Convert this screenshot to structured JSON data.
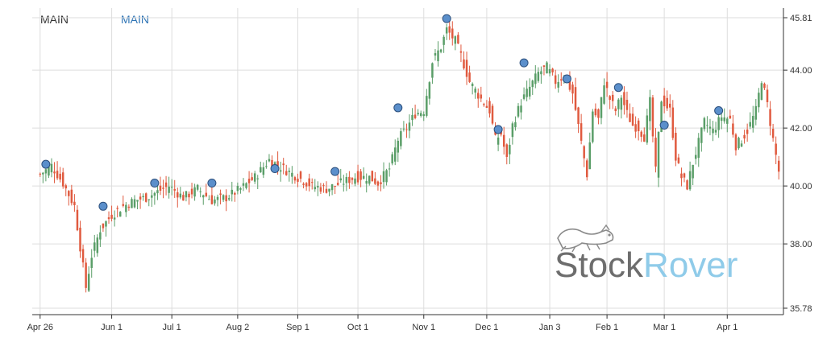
{
  "legend": {
    "items": [
      "MAIN",
      "MAIN"
    ]
  },
  "watermark": {
    "part1": "Stock",
    "part2": "Rover"
  },
  "colors": {
    "up": "#5a9e68",
    "down": "#e05a3f",
    "marker": "#5b8fcb",
    "grid": "#dddddd",
    "axis": "#333333",
    "watermark_part1": "#6d6d6d",
    "watermark_part2": "#8fcbe9"
  },
  "chart_data": {
    "type": "candlestick",
    "x_axis": {
      "labels": [
        "Apr 26",
        "Jun 1",
        "Jul 1",
        "Aug 2",
        "Sep 1",
        "Oct 1",
        "Nov 1",
        "Dec 1",
        "Jan 3",
        "Feb 1",
        "Mar 1",
        "Apr 1"
      ],
      "label_day_index": [
        0,
        25,
        46,
        69,
        90,
        111,
        134,
        156,
        178,
        198,
        218,
        240
      ]
    },
    "y_axis": {
      "ticks": [
        "45.81",
        "44.00",
        "42.00",
        "40.00",
        "38.00",
        "35.78"
      ],
      "range": [
        35.78,
        45.81
      ],
      "position": "right"
    },
    "grid": true,
    "series_anchors": [
      [
        0,
        40.4
      ],
      [
        4,
        40.7
      ],
      [
        8,
        40.1
      ],
      [
        12,
        39.3
      ],
      [
        14,
        37.9
      ],
      [
        16,
        36.5
      ],
      [
        18,
        37.6
      ],
      [
        21,
        38.5
      ],
      [
        25,
        39.0
      ],
      [
        29,
        39.3
      ],
      [
        33,
        39.5
      ],
      [
        37,
        39.6
      ],
      [
        41,
        39.8
      ],
      [
        45,
        40.0
      ],
      [
        50,
        39.6
      ],
      [
        55,
        39.9
      ],
      [
        60,
        39.5
      ],
      [
        65,
        39.6
      ],
      [
        70,
        39.9
      ],
      [
        75,
        40.3
      ],
      [
        80,
        40.9
      ],
      [
        85,
        40.6
      ],
      [
        90,
        40.3
      ],
      [
        95,
        40.0
      ],
      [
        100,
        39.9
      ],
      [
        105,
        40.1
      ],
      [
        110,
        40.3
      ],
      [
        115,
        40.3
      ],
      [
        118,
        40.1
      ],
      [
        122,
        40.6
      ],
      [
        125,
        41.6
      ],
      [
        128,
        42.0
      ],
      [
        131,
        42.5
      ],
      [
        134,
        42.6
      ],
      [
        137,
        44.3
      ],
      [
        140,
        44.8
      ],
      [
        142,
        45.4
      ],
      [
        145,
        45.0
      ],
      [
        147,
        44.5
      ],
      [
        150,
        43.6
      ],
      [
        154,
        43.0
      ],
      [
        157,
        42.6
      ],
      [
        159,
        41.6
      ],
      [
        161,
        41.8
      ],
      [
        163,
        40.9
      ],
      [
        165,
        42.1
      ],
      [
        168,
        42.9
      ],
      [
        171,
        43.4
      ],
      [
        174,
        43.9
      ],
      [
        177,
        44.1
      ],
      [
        180,
        43.6
      ],
      [
        183,
        43.8
      ],
      [
        186,
        43.2
      ],
      [
        189,
        41.5
      ],
      [
        191,
        40.4
      ],
      [
        193,
        42.6
      ],
      [
        195,
        42.3
      ],
      [
        197,
        43.6
      ],
      [
        199,
        43.0
      ],
      [
        201,
        42.6
      ],
      [
        203,
        43.1
      ],
      [
        205,
        42.5
      ],
      [
        207,
        42.1
      ],
      [
        209,
        42.0
      ],
      [
        211,
        41.7
      ],
      [
        213,
        42.9
      ],
      [
        215,
        40.5
      ],
      [
        217,
        43.0
      ],
      [
        220,
        42.6
      ],
      [
        222,
        41.0
      ],
      [
        224,
        40.3
      ],
      [
        226,
        40.0
      ],
      [
        228,
        40.8
      ],
      [
        230,
        41.5
      ],
      [
        232,
        42.2
      ],
      [
        235,
        41.9
      ],
      [
        238,
        42.4
      ],
      [
        241,
        42.3
      ],
      [
        243,
        41.4
      ],
      [
        245,
        41.6
      ],
      [
        247,
        41.9
      ],
      [
        250,
        42.6
      ],
      [
        252,
        43.7
      ],
      [
        254,
        42.8
      ],
      [
        256,
        41.6
      ],
      [
        258,
        40.5
      ]
    ],
    "markers": [
      [
        2,
        40.75
      ],
      [
        22,
        39.3
      ],
      [
        40,
        40.1
      ],
      [
        60,
        40.1
      ],
      [
        82,
        40.6
      ],
      [
        103,
        40.5
      ],
      [
        125,
        42.7
      ],
      [
        142,
        45.78
      ],
      [
        160,
        41.95
      ],
      [
        169,
        44.25
      ],
      [
        184,
        43.7
      ],
      [
        202,
        43.4
      ],
      [
        218,
        42.1
      ],
      [
        237,
        42.6
      ]
    ]
  }
}
